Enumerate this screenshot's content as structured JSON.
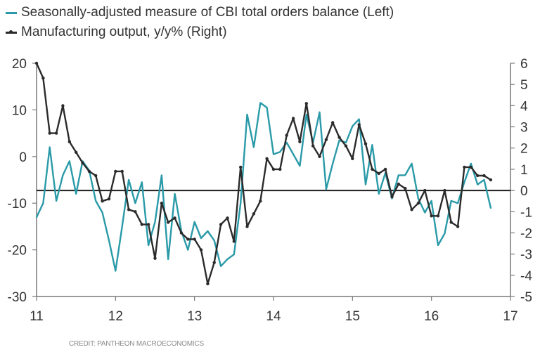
{
  "chart_data": {
    "type": "line",
    "title": "",
    "legend": {
      "placement": "top-left",
      "entries": [
        {
          "label": "Seasonally-adjusted measure of CBI total orders balance (Left)",
          "color": "#2a9aa8",
          "axis": "left"
        },
        {
          "label": "Manufacturing output, y/y% (Right)",
          "color": "#2b2b2b",
          "axis": "right",
          "markers": true
        }
      ]
    },
    "x_axis": {
      "label": "",
      "range": [
        11,
        17
      ],
      "ticks": [
        "11",
        "12",
        "13",
        "14",
        "15",
        "16",
        "17"
      ]
    },
    "y_left": {
      "label": "",
      "range": [
        -30,
        20
      ],
      "ticks": [
        "20",
        "10",
        "0",
        "-10",
        "-20",
        "-30"
      ]
    },
    "y_right": {
      "label": "",
      "range": [
        -5,
        6
      ],
      "ticks": [
        "6",
        "5",
        "4",
        "3",
        "2",
        "1",
        "0",
        "-1",
        "-2",
        "-3",
        "-4",
        "-5"
      ]
    },
    "reference_line": {
      "axis": "right",
      "value": 0
    },
    "grid": false,
    "series": [
      {
        "name": "Seasonally-adjusted measure of CBI total orders balance (Left)",
        "axis": "left",
        "color": "#2a9aa8",
        "start": 11.0,
        "step_years": 0.08333,
        "values": [
          -13,
          -10,
          2,
          -9.5,
          -4,
          -1,
          -8,
          -1,
          -3,
          -9.5,
          -12,
          -18,
          -24.5,
          -15,
          -5,
          -10,
          -5.5,
          -19,
          -14,
          -4,
          -22,
          -8,
          -16,
          -20,
          -14,
          -17.5,
          -16,
          -18,
          -23.5,
          -22,
          -21,
          -10,
          9,
          2,
          11.5,
          10.5,
          0.5,
          1,
          3,
          0.5,
          -2,
          9,
          3,
          9.5,
          -7,
          -1.5,
          3.5,
          3,
          6.5,
          8,
          -6,
          2.5,
          -8,
          -3.5,
          -9,
          -4,
          -4,
          -1.5,
          -9,
          -12,
          -9.5,
          -19,
          -16.5,
          -9.5,
          -10,
          -5.5,
          -1.5,
          -6,
          -5,
          -11
        ]
      },
      {
        "name": "Manufacturing output, y/y% (Right)",
        "axis": "right",
        "color": "#2b2b2b",
        "start": 11.0,
        "step_years": 0.08333,
        "values": [
          6.0,
          5.3,
          2.7,
          2.7,
          4.0,
          2.3,
          1.8,
          1.3,
          0.9,
          0.7,
          -0.5,
          -0.4,
          0.9,
          0.9,
          -0.9,
          -1.0,
          -1.6,
          -1.6,
          -3.2,
          -0.6,
          -1.5,
          -1.3,
          -2.0,
          -2.3,
          -2.3,
          -2.8,
          -4.4,
          -3.4,
          -1.6,
          -1.3,
          -2.4,
          1.1,
          -1.7,
          -1.1,
          -0.5,
          1.5,
          1.0,
          1.0,
          2.6,
          3.4,
          2.3,
          4.1,
          2.1,
          1.6,
          2.4,
          3.2,
          2.5,
          2.1,
          1.5,
          3.1,
          2.2,
          1.0,
          0.8,
          1.0,
          -0.3,
          0.3,
          0.1,
          -0.9,
          -0.6,
          0.0,
          -1.2,
          -1.2,
          0.0,
          -1.5,
          -1.7,
          1.1,
          1.1,
          0.7,
          0.7,
          0.5
        ]
      }
    ]
  },
  "credit": "CREDIT: PANTHEON MACROECONOMICS"
}
